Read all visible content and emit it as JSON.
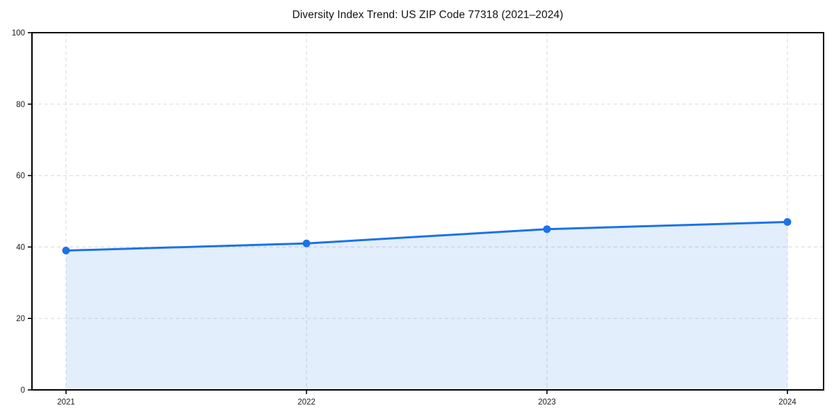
{
  "chart_data": {
    "type": "area",
    "title": "Diversity Index Trend: US ZIP Code 77318 (2021–2024)",
    "x_labels": [
      "2021",
      "2022",
      "2023",
      "2024"
    ],
    "values": [
      39,
      41,
      45,
      47
    ],
    "xlabel": "",
    "ylabel": "",
    "ylim": [
      0,
      100
    ],
    "yticks": [
      0,
      20,
      40,
      60,
      80,
      100
    ],
    "grid": true,
    "grid_style": "dashed",
    "legend": false,
    "marker": "circle",
    "colors": {
      "line": "#1a73e8",
      "marker": "#1a73e8",
      "fill": "rgba(26,115,232,0.12)",
      "grid": "#dedede",
      "axis": "#000000",
      "tick_text": "#1a1a1a",
      "background": "#ffffff"
    }
  }
}
